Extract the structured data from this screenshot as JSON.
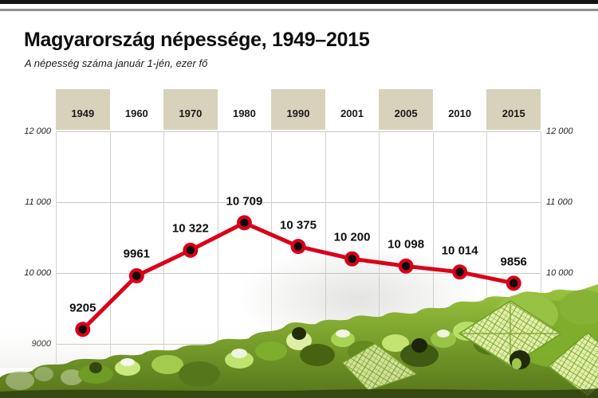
{
  "page": {
    "title": "Magyarország népessége, 1949–2015",
    "subtitle": "A népesség száma január 1-jén, ezer fő"
  },
  "chart_data": {
    "type": "line",
    "title": "Magyarország népessége, 1949–2015",
    "subtitle": "A népesség száma január 1-jén, ezer fő",
    "unit": "ezer fő (thousand persons)",
    "categories": [
      "1949",
      "1960",
      "1970",
      "1980",
      "1990",
      "2001",
      "2005",
      "2010",
      "2015"
    ],
    "values": [
      9205,
      9961,
      10322,
      10709,
      10375,
      10200,
      10098,
      10014,
      9856
    ],
    "value_labels": [
      "9205",
      "9961",
      "10 322",
      "10 709",
      "10 375",
      "10 200",
      "10 098",
      "10 014",
      "9856"
    ],
    "y_axis": {
      "min": 9000,
      "max": 12000,
      "ticks": [
        {
          "value": 9000,
          "left": "9000",
          "right": ""
        },
        {
          "value": 10000,
          "left": "10 000",
          "right": "10 000"
        },
        {
          "value": 11000,
          "left": "11 000",
          "right": "11 000"
        },
        {
          "value": 12000,
          "left": "12 000",
          "right": "12 000"
        }
      ]
    },
    "grid": true,
    "legend": "none",
    "line_color": "#da0019",
    "marker_fill": "#0b0b0b",
    "marker_ring": "#da0019",
    "header_band_color": "#d8d2bc"
  },
  "colors": {
    "accent_red": "#da0019",
    "header_beige": "#d8d2bc",
    "gridline": "#c7c7c4"
  }
}
